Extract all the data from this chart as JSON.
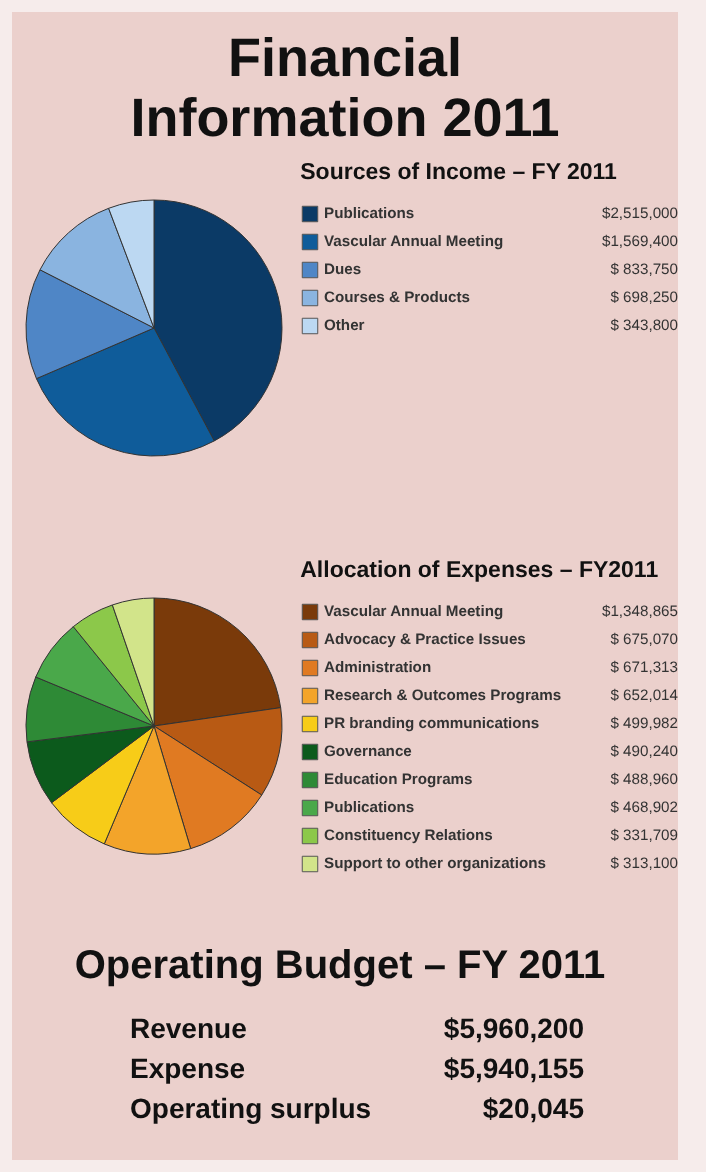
{
  "chart_data": [
    {
      "type": "pie",
      "title": "Financial Information 2011",
      "legend_title": "Sources of Income – FY 2011",
      "legend": "right",
      "categories": [
        "Publications",
        "Vascular Annual Meeting",
        "Dues",
        "Courses & Products",
        "Other"
      ],
      "values": [
        2515000,
        1569400,
        833750,
        698250,
        343800
      ],
      "value_labels": [
        "$2,515,000",
        "$1,569,400",
        "$ 833,750",
        "$ 698,250",
        "$ 343,800"
      ],
      "colors": [
        "#0b3a66",
        "#0f5c9a",
        "#4f86c6",
        "#8ab4e0",
        "#bcd8f2"
      ]
    },
    {
      "type": "pie",
      "legend_title": "Allocation of Expenses – FY2011",
      "legend": "right",
      "categories": [
        "Vascular Annual Meeting",
        "Advocacy & Practice Issues",
        "Administration",
        "Research & Outcomes Programs",
        "PR branding communications",
        "Governance",
        "Education Programs",
        "Publications",
        "Constituency Relations",
        "Support to other organizations"
      ],
      "values": [
        1348865,
        675070,
        671313,
        652014,
        499982,
        490240,
        488960,
        468902,
        331709,
        313100
      ],
      "value_labels": [
        "$1,348,865",
        "$ 675,070",
        "$ 671,313",
        "$ 652,014",
        "$ 499,982",
        "$ 490,240",
        "$ 488,960",
        "$ 468,902",
        "$ 331,709",
        "$ 313,100"
      ],
      "colors": [
        "#7a3a0a",
        "#b85a14",
        "#e07a22",
        "#f3a42a",
        "#f7cc18",
        "#0c5a1c",
        "#2e8a36",
        "#4aa84a",
        "#8cc84a",
        "#d2e48a"
      ]
    },
    {
      "type": "other",
      "title": "Operating Budget – FY 2011",
      "categories": [
        "Revenue",
        "Expense",
        "Operating surplus"
      ],
      "values": [
        5960200,
        5940155,
        20045
      ],
      "value_labels": [
        "$5,960,200",
        "$5,940,155",
        "$20,045"
      ]
    }
  ]
}
